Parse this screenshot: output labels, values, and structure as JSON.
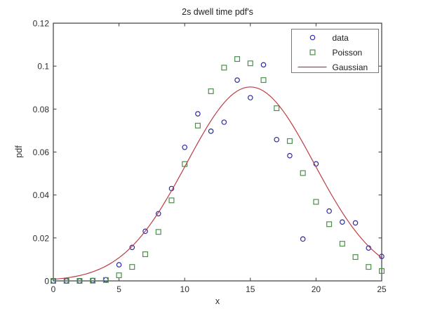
{
  "chart_data": {
    "type": "scatter+line",
    "title": "2s dwell time pdf's",
    "xlabel": "x",
    "ylabel": "pdf",
    "xlim": [
      0,
      25
    ],
    "ylim": [
      0,
      0.12
    ],
    "xticks": [
      0,
      5,
      10,
      15,
      20,
      25
    ],
    "xtick_labels": [
      "0",
      "5",
      "10",
      "15",
      "20",
      "25"
    ],
    "yticks": [
      0,
      0.02,
      0.04,
      0.06,
      0.08,
      0.1,
      0.12
    ],
    "ytick_labels": [
      "0",
      "0.02",
      "0.04",
      "0.06",
      "0.08",
      "0.1",
      "0.12"
    ],
    "grid": false,
    "legend_position": "top-right",
    "axis_color": "#3c3c3c",
    "legend_border_color": "#777777",
    "x": [
      0,
      1,
      2,
      3,
      4,
      5,
      6,
      7,
      8,
      9,
      10,
      11,
      12,
      13,
      14,
      15,
      16,
      17,
      18,
      19,
      20,
      21,
      22,
      23,
      24,
      25
    ],
    "series": [
      {
        "name": "data",
        "kind": "scatter",
        "marker": "circle",
        "color": "#2c2ca0",
        "values": [
          0,
          0,
          0,
          0.0002,
          0.0005,
          0.0075,
          0.0156,
          0.0231,
          0.0313,
          0.043,
          0.0622,
          0.0778,
          0.0697,
          0.0739,
          0.0935,
          0.0853,
          0.1006,
          0.0658,
          0.0583,
          0.0195,
          0.0545,
          0.0325,
          0.0274,
          0.027,
          0.0153,
          0.0114
        ]
      },
      {
        "name": "Poisson",
        "kind": "scatter",
        "marker": "square",
        "color": "#4c8f4c",
        "values": [
          0,
          0,
          0,
          0.0001,
          0.0004,
          0.0026,
          0.0065,
          0.0124,
          0.0228,
          0.0375,
          0.0544,
          0.0723,
          0.0883,
          0.0993,
          0.1033,
          0.1013,
          0.0935,
          0.0804,
          0.0651,
          0.0502,
          0.0368,
          0.0264,
          0.0173,
          0.0111,
          0.0065,
          0.0046
        ]
      },
      {
        "name": "Gaussian",
        "kind": "line",
        "color": "#bc3c44",
        "model": {
          "shape": "gaussian",
          "mu": 15.0,
          "sigma": 4.85,
          "amplitude": 0.0903
        }
      }
    ]
  }
}
